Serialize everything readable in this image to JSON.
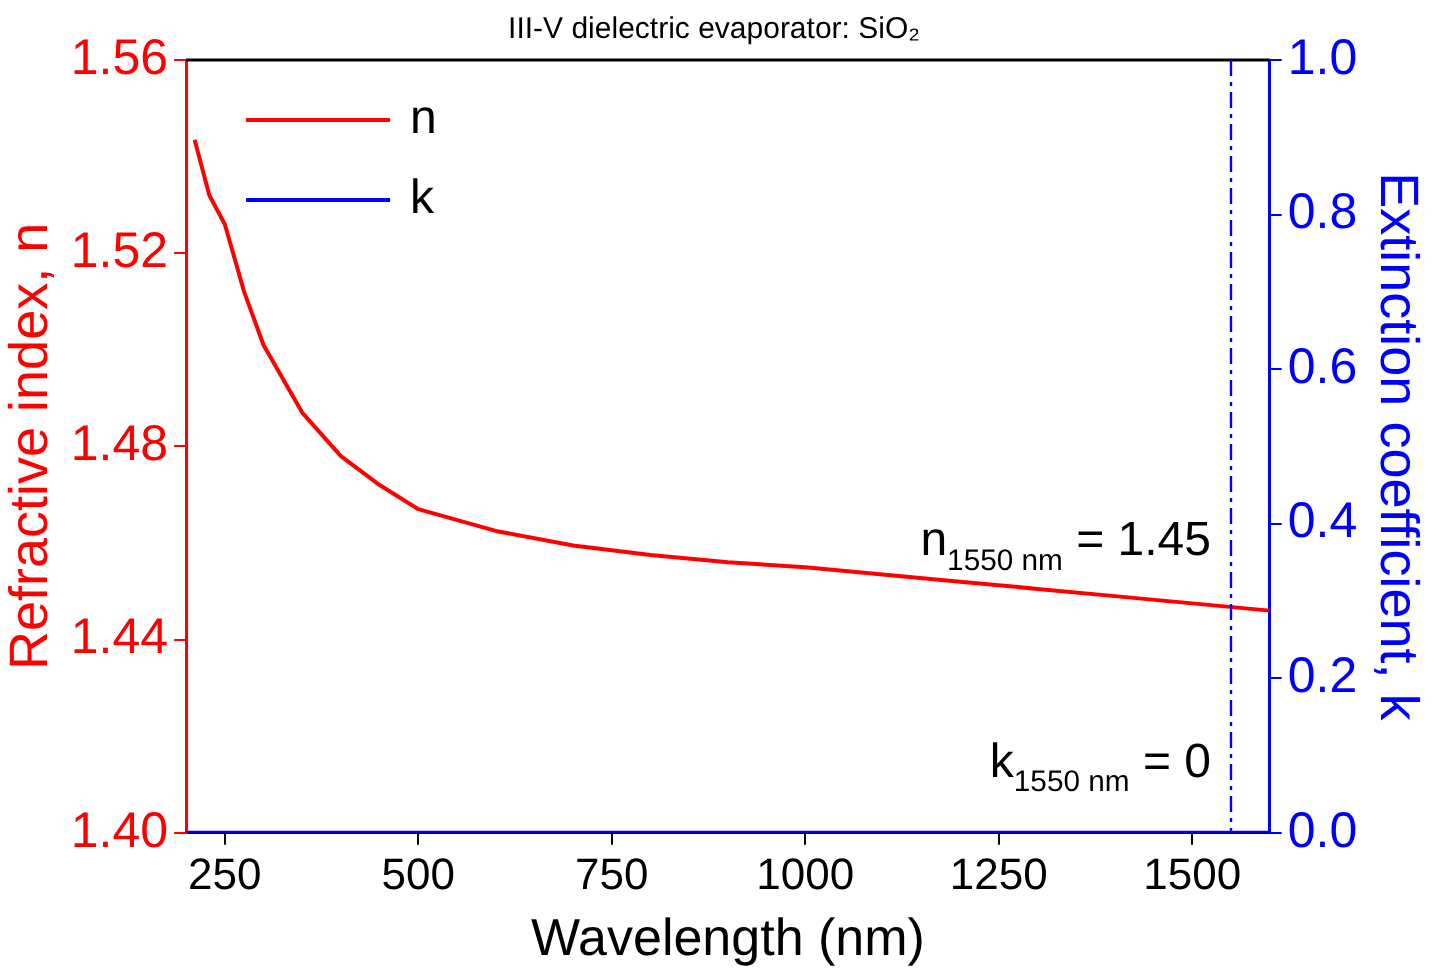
{
  "chart_data": {
    "type": "line",
    "title": "III-V dielectric evaporator: SiO₂",
    "xlabel": "Wavelength (nm)",
    "ylabel": "Refractive index, n",
    "y2label": "Extinction coefficient, k",
    "series": [
      {
        "name": "n",
        "color": "#ff0000",
        "x": [
          211,
          230,
          250,
          275,
          300,
          350,
          400,
          450,
          500,
          600,
          700,
          800,
          900,
          1000,
          1100,
          1200,
          1300,
          1400,
          1500,
          1600
        ],
        "values": [
          1.5435,
          1.532,
          1.526,
          1.512,
          1.501,
          1.487,
          1.478,
          1.472,
          1.467,
          1.4625,
          1.4595,
          1.4575,
          1.456,
          1.455,
          1.4535,
          1.452,
          1.4505,
          1.449,
          1.4475,
          1.446
        ]
      },
      {
        "name": "k",
        "color": "#0000ff",
        "axis": "y2",
        "x": [
          200,
          1600
        ],
        "values": [
          0,
          0
        ]
      }
    ],
    "xlim": [
      200,
      1600
    ],
    "xticks": [
      250,
      500,
      750,
      1000,
      1250,
      1500
    ],
    "ylim": [
      1.4,
      1.56
    ],
    "yticks": [
      "1.40",
      1.44,
      1.48,
      1.52,
      1.56
    ],
    "y2lim": [
      0,
      1
    ],
    "y2ticks": [
      "0.0",
      0.2,
      0.4,
      0.6,
      0.8,
      "1.0"
    ],
    "ref_lines": [
      {
        "axis": "x",
        "value": 1550,
        "color": "#0000ff",
        "line_style": "dashed"
      }
    ],
    "annotations": [
      {
        "text": "n$_{1550 nm}$ = 1.45",
        "x": 1550,
        "y": 1.45
      },
      {
        "text": "k$_{1550 nm}$ = 0",
        "x": 1550,
        "y": 1.4
      }
    ],
    "legend": "top left",
    "grid": false,
    "marker": "none",
    "line_style": "solid"
  }
}
